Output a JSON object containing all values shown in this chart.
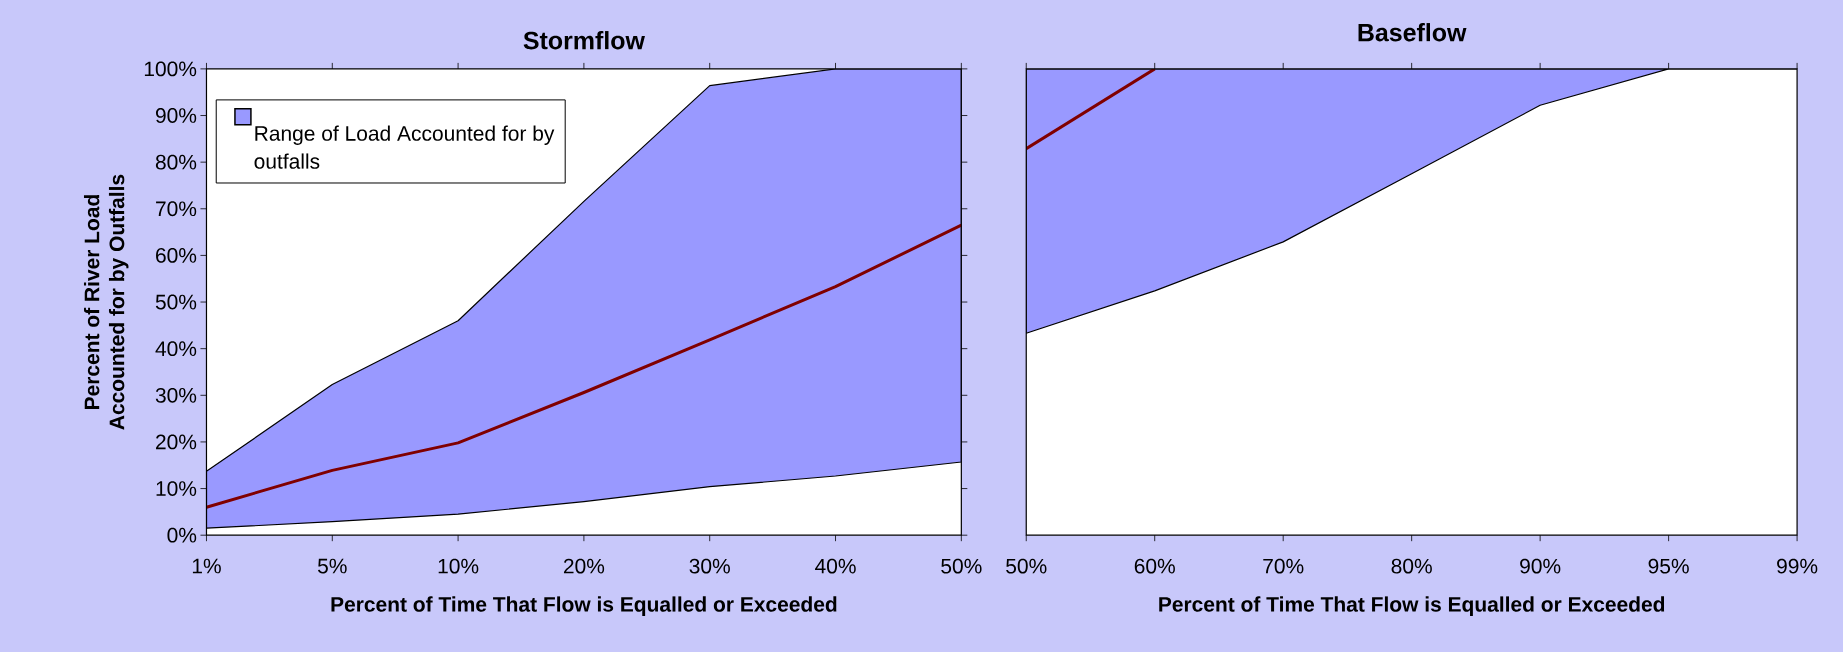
{
  "chart_data": [
    {
      "type": "line",
      "title": "Stormflow",
      "xlabel": "Percent of Time That Flow is Equalled or Exceeded",
      "ylabel": "Percent of River Load Accounted for by Outfalls",
      "categories": [
        "1%",
        "5%",
        "10%",
        "20%",
        "30%",
        "40%",
        "50%"
      ],
      "ylim": [
        0,
        100
      ],
      "yticks": [
        {
          "value": 0,
          "label": "0%"
        },
        {
          "value": 10,
          "label": "10%"
        },
        {
          "value": 20,
          "label": "20%"
        },
        {
          "value": 30,
          "label": "30%"
        },
        {
          "value": 40,
          "label": "40%"
        },
        {
          "value": 50,
          "label": "50%"
        },
        {
          "value": 60,
          "label": "60%"
        },
        {
          "value": 70,
          "label": "70%"
        },
        {
          "value": 80,
          "label": "80%"
        },
        {
          "value": 90,
          "label": "90%"
        },
        {
          "value": 100,
          "label": "100%"
        }
      ],
      "legend": "top left",
      "series": [
        {
          "name": "Range of Load Accounted for by outfalls",
          "color": "#800000",
          "values": [
            6.0,
            13.9,
            19.8,
            30.6,
            41.9,
            53.3,
            66.5
          ],
          "lower": [
            1.5,
            2.9,
            4.5,
            7.2,
            10.4,
            12.7,
            15.7
          ],
          "upper": [
            13.7,
            32.3,
            46,
            71.6,
            96.4,
            100,
            100
          ]
        }
      ]
    },
    {
      "type": "line",
      "title": "Baseflow",
      "xlabel": "Percent of Time That Flow is Equalled or Exceeded",
      "categories": [
        "50%",
        "60%",
        "70%",
        "80%",
        "90%",
        "95%",
        "99%"
      ],
      "ylim": [
        0,
        100
      ],
      "tick_labels": "x",
      "series": [
        {
          "color": "#800000",
          "values": [
            82.9,
            100,
            null,
            null,
            null,
            null,
            null
          ],
          "lower": [
            43.3,
            52.4,
            62.9,
            77.5,
            92.2,
            100,
            100
          ],
          "upper": [
            100,
            100,
            100,
            100,
            100,
            100,
            100
          ]
        }
      ]
    }
  ]
}
